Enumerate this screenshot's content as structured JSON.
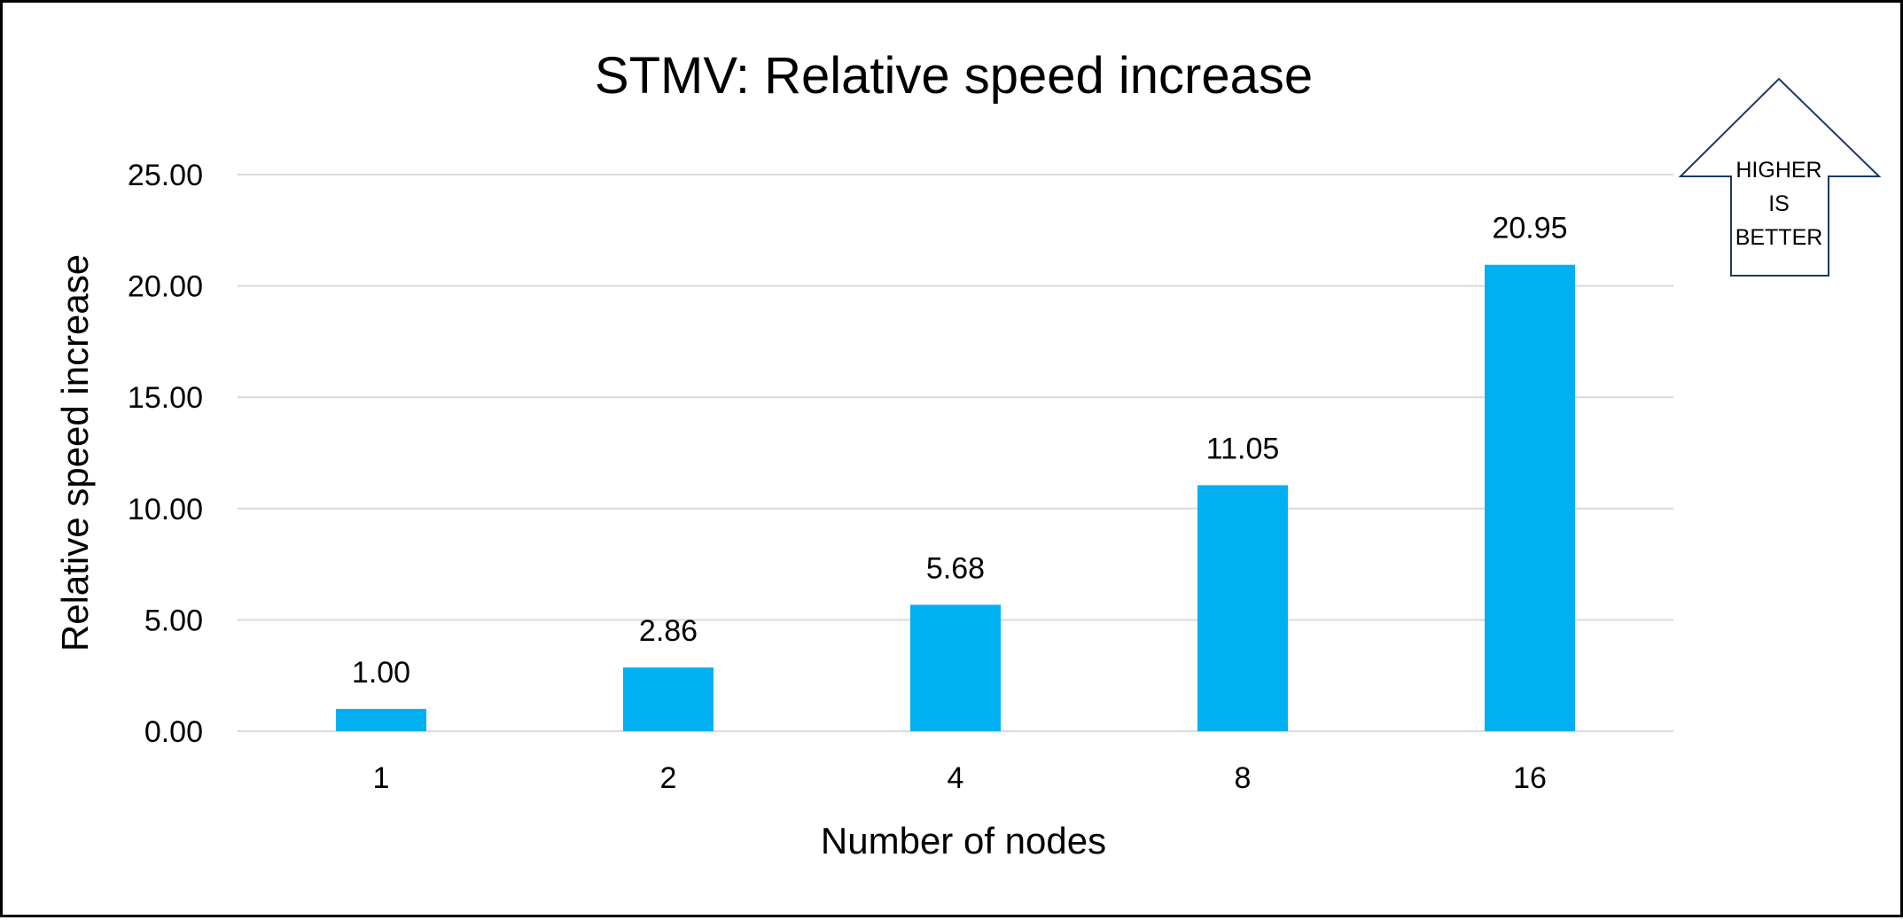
{
  "chart_data": {
    "type": "bar",
    "title": "STMV: Relative speed increase",
    "xlabel": "Number of nodes",
    "ylabel": "Relative speed increase",
    "categories": [
      "1",
      "2",
      "4",
      "8",
      "16"
    ],
    "values": [
      1.0,
      2.86,
      5.68,
      11.05,
      20.95
    ],
    "value_labels": [
      "1.00",
      "2.86",
      "5.68",
      "11.05",
      "20.95"
    ],
    "ylim": [
      0,
      25
    ],
    "yticks": [
      "0.00",
      "5.00",
      "10.00",
      "15.00",
      "20.00",
      "25.00"
    ],
    "grid": true,
    "legend": "none",
    "bar_color": "#00B0F0",
    "annotation": {
      "shape": "up-arrow",
      "lines": [
        "HIGHER",
        "IS",
        "BETTER"
      ],
      "outline_color": "#1F3864"
    }
  }
}
